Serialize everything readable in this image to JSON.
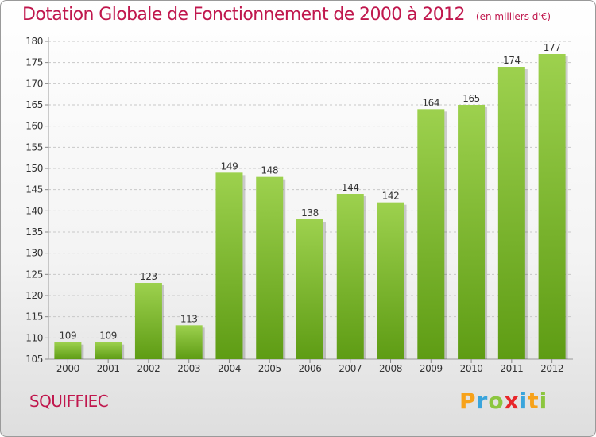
{
  "header": {
    "title": "Dotation Globale de Fonctionnement de 2000 à 2012",
    "unit": "(en milliers d'€)"
  },
  "footer": {
    "commune": "SQUIFFIEC",
    "logo_letters": [
      "P",
      "r",
      "o",
      "x",
      "i",
      "t",
      "i"
    ],
    "logo_colors": [
      "#f7a21a",
      "#3aa5dc",
      "#8cc63f",
      "#e8262a",
      "#3aa5dc",
      "#f7a21a",
      "#8cc63f"
    ]
  },
  "colors": {
    "accent": "#c0174d",
    "bar_top": "#9dd14e",
    "bar_bottom": "#5e9c14",
    "grid": "#c8c8c8"
  },
  "chart_data": {
    "type": "bar",
    "categories": [
      "2000",
      "2001",
      "2002",
      "2003",
      "2004",
      "2005",
      "2006",
      "2007",
      "2008",
      "2009",
      "2010",
      "2011",
      "2012"
    ],
    "values": [
      109,
      109,
      123,
      113,
      149,
      148,
      138,
      144,
      142,
      164,
      165,
      174,
      177
    ],
    "ylim": [
      105,
      180
    ],
    "yticks": [
      105,
      110,
      115,
      120,
      125,
      130,
      135,
      140,
      145,
      150,
      155,
      160,
      165,
      170,
      175,
      180
    ],
    "grid": "horizontal dashed",
    "legend": "none"
  }
}
